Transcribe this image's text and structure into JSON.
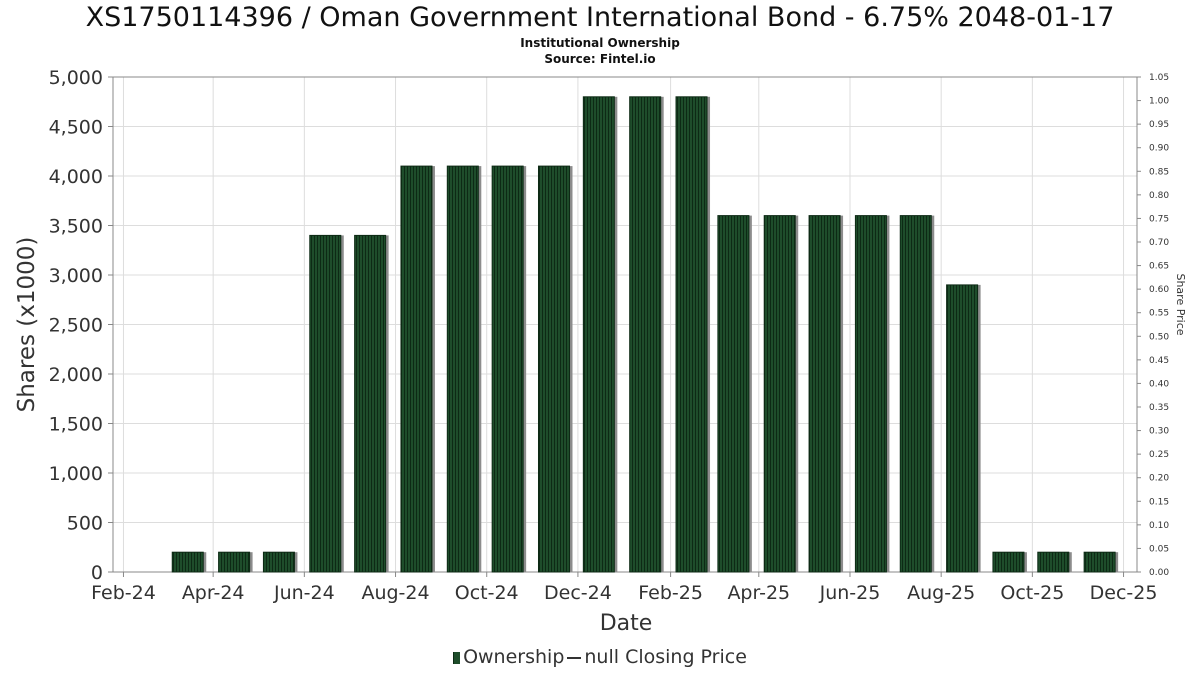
{
  "chart_data": {
    "type": "bar",
    "title": "XS1750114396 / Oman Government International Bond - 6.75% 2048-01-17",
    "subtitle": "Institutional Ownership",
    "source": "Source: Fintel.io",
    "xlabel": "Date",
    "ylabel": "Shares (x1000)",
    "y2label": "Share Price",
    "x": [
      "2024-03-15",
      "2024-04-15",
      "2024-05-15",
      "2024-06-15",
      "2024-07-15",
      "2024-08-15",
      "2024-09-15",
      "2024-10-15",
      "2024-11-15",
      "2024-12-15",
      "2025-01-15",
      "2025-02-15",
      "2025-03-15",
      "2025-04-15",
      "2025-05-15",
      "2025-06-15",
      "2025-07-15",
      "2025-08-15",
      "2025-09-15",
      "2025-10-15",
      "2025-11-15"
    ],
    "series": [
      {
        "name": "Ownership",
        "values": [
          200,
          200,
          200,
          3400,
          3400,
          4100,
          4100,
          4100,
          4100,
          4800,
          4800,
          4800,
          3600,
          3600,
          3600,
          3600,
          3600,
          2900,
          200,
          200,
          200
        ]
      }
    ],
    "x_ticks": [
      "Feb-24",
      "Apr-24",
      "Jun-24",
      "Aug-24",
      "Oct-24",
      "Dec-24",
      "Feb-25",
      "Apr-25",
      "Jun-25",
      "Aug-25",
      "Oct-25",
      "Dec-25"
    ],
    "xlim": [
      "2024-01-25",
      "2025-12-10"
    ],
    "ylim": [
      0,
      5000
    ],
    "y_ticks": [
      "0",
      "500",
      "1,000",
      "1,500",
      "2,000",
      "2,500",
      "3,000",
      "3,500",
      "4,000",
      "4,500",
      "5,000"
    ],
    "y2lim": [
      0,
      1.05
    ],
    "y2_ticks": [
      "0.00",
      "0.05",
      "0.10",
      "0.15",
      "0.20",
      "0.25",
      "0.30",
      "0.35",
      "0.40",
      "0.45",
      "0.50",
      "0.55",
      "0.60",
      "0.65",
      "0.70",
      "0.75",
      "0.80",
      "0.85",
      "0.90",
      "0.95",
      "1.00",
      "1.05"
    ],
    "grid": true,
    "legend": {
      "position": "bottom",
      "ownership_label": "Ownership",
      "price_label": "null Closing Price"
    },
    "colors": {
      "bar": "#1e4d2b",
      "bar_stripe": "#0d2a15",
      "bar_shadow": "#8c8c8c",
      "grid": "#dddddd",
      "axis": "#888888"
    }
  }
}
